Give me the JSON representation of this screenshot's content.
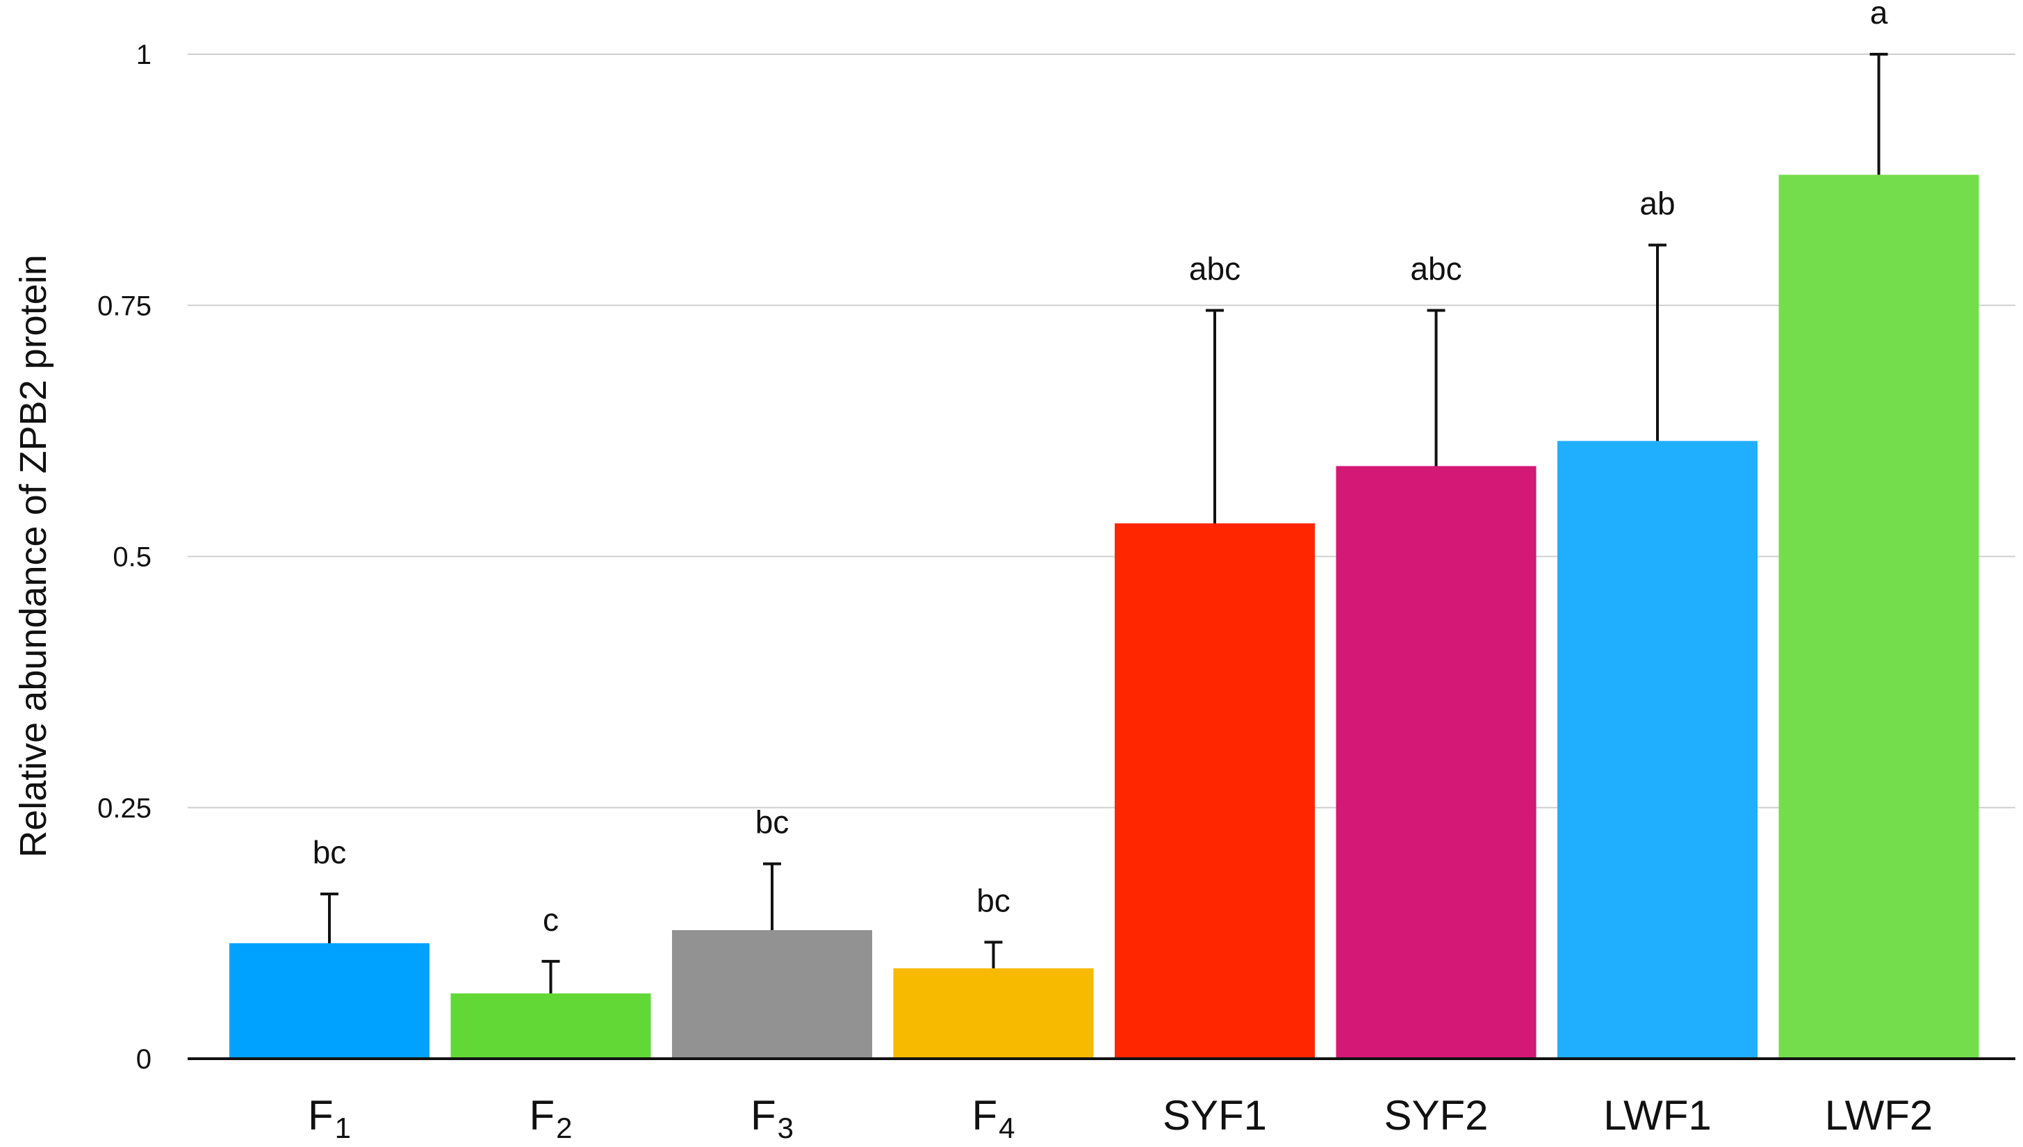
{
  "chart_data": {
    "type": "bar",
    "title": "",
    "xlabel": "",
    "ylabel": "Relative abundance of ZPB2 protein",
    "ylim": [
      0,
      1
    ],
    "yticks": [
      0,
      0.25,
      0.5,
      0.75,
      1
    ],
    "ytick_labels": [
      "0",
      "0.25",
      "0.5",
      "0.75",
      "1"
    ],
    "grid": true,
    "categories": [
      {
        "base": "F",
        "sub": "1"
      },
      {
        "base": "F",
        "sub": "2"
      },
      {
        "base": "F",
        "sub": "3"
      },
      {
        "base": "F",
        "sub": "4"
      },
      {
        "base": "SYF1",
        "sub": ""
      },
      {
        "base": "SYF2",
        "sub": ""
      },
      {
        "base": "LWF1",
        "sub": ""
      },
      {
        "base": "LWF2",
        "sub": ""
      }
    ],
    "values": [
      0.115,
      0.065,
      0.128,
      0.09,
      0.533,
      0.59,
      0.615,
      0.88
    ],
    "errors": [
      0.049,
      0.032,
      0.066,
      0.026,
      0.212,
      0.155,
      0.195,
      0.12
    ],
    "significance": [
      "bc",
      "c",
      "bc",
      "bc",
      "abc",
      "abc",
      "ab",
      "a"
    ],
    "colors": [
      "#00a2ff",
      "#61d836",
      "#929292",
      "#f8ba00",
      "#ff2600",
      "#d31876",
      "#20aeff",
      "#74dd4b"
    ]
  }
}
